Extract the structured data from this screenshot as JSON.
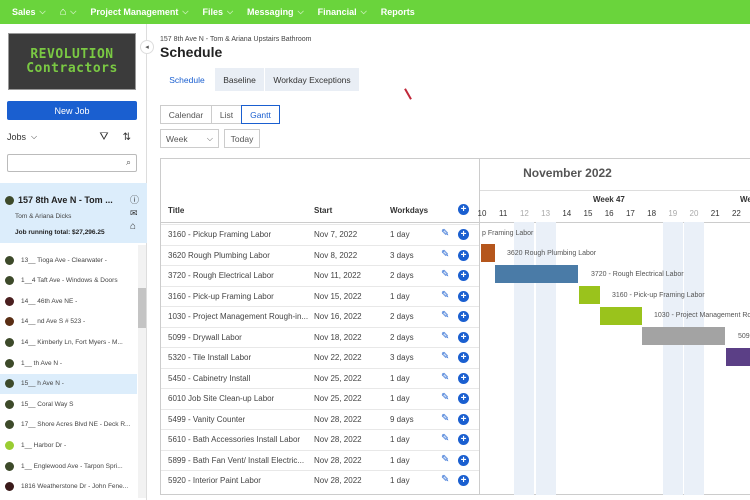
{
  "nav": {
    "items": [
      "Sales",
      "",
      "Project Management",
      "Files",
      "Messaging",
      "Financial",
      "Reports"
    ],
    "icons": [
      "chevron-down-icon",
      "home-icon"
    ]
  },
  "sidebar": {
    "logo_line1": "REVOLUTION",
    "logo_line2": "Contractors",
    "new_job": "New Job",
    "jobs_label": "Jobs",
    "selected": {
      "title": "157 8th Ave N - Tom ...",
      "client": "Tom & Ariana Dicks",
      "total": "Job running total: $27,296.25"
    },
    "jobs": [
      {
        "label": "13__ Tioga Ave - Clearwater -",
        "color": "#3d4a2a"
      },
      {
        "label": "1__4 Taft Ave - Windows & Doors",
        "color": "#3d4a2a"
      },
      {
        "label": "14__ 46th Ave NE -",
        "color": "#4a1f1f"
      },
      {
        "label": "14__ nd Ave S # 523 -",
        "color": "#5a2e14"
      },
      {
        "label": "14__ Kimberly Ln, Fort Myers - M...",
        "color": "#3d4a2a"
      },
      {
        "label": "1__ th Ave N -",
        "color": "#3d4a2a"
      },
      {
        "label": "15__ h Ave N -",
        "color": "#3d4a2a"
      },
      {
        "label": "15__ Coral Way S",
        "color": "#3d4a2a"
      },
      {
        "label": "17__ Shore Acres Blvd NE - Deck R...",
        "color": "#3d4a2a"
      },
      {
        "label": "1__ Harbor Dr -",
        "color": "#9acd32"
      },
      {
        "label": "1__ Englewood Ave - Tarpon Spri...",
        "color": "#3d4a2a"
      },
      {
        "label": "1816 Weatherstone Dr - John Fene...",
        "color": "#3a1a1a"
      }
    ]
  },
  "main": {
    "breadcrumb": "157 8th Ave N - Tom & Ariana Upstairs Bathroom",
    "title": "Schedule",
    "tabs": [
      "Schedule",
      "Baseline",
      "Workday Exceptions"
    ],
    "active_tab": "Schedule",
    "views": [
      "Calendar",
      "List",
      "Gantt"
    ],
    "active_view": "Gantt",
    "range": "Week",
    "today": "Today"
  },
  "table": {
    "headers": [
      "Title",
      "Start",
      "Workdays"
    ],
    "rows": [
      [
        "3160 - Pickup Framing Labor",
        "Nov 7, 2022",
        "1 day"
      ],
      [
        "3620 Rough Plumbing Labor",
        "Nov 8, 2022",
        "3 days"
      ],
      [
        "3720 - Rough Electrical Labor",
        "Nov 11, 2022",
        "2 days"
      ],
      [
        "3160 - Pick-up Framing Labor",
        "Nov 15, 2022",
        "1 day"
      ],
      [
        "1030 - Project Management Rough-in...",
        "Nov 16, 2022",
        "2 days"
      ],
      [
        "5099 - Drywall Labor",
        "Nov 18, 2022",
        "2 days"
      ],
      [
        "5320 - Tile Install Labor",
        "Nov 22, 2022",
        "3 days"
      ],
      [
        "5450 - Cabinetry Install",
        "Nov 25, 2022",
        "1 day"
      ],
      [
        "6010 Job Site Clean-up Labor",
        "Nov 25, 2022",
        "1 day"
      ],
      [
        "5499 - Vanity Counter",
        "Nov 28, 2022",
        "9 days"
      ],
      [
        "5610 - Bath Accessories Install Labor",
        "Nov 28, 2022",
        "1 day"
      ],
      [
        "5899 - Bath Fan Vent/ Install Electric...",
        "Nov 28, 2022",
        "1 day"
      ],
      [
        "5920 - Interior Paint Labor",
        "Nov 28, 2022",
        "1 day"
      ]
    ]
  },
  "gantt": {
    "month": "November 2022",
    "week": "Week 47",
    "next_week": "We",
    "days": [
      "10",
      "11",
      "12",
      "13",
      "14",
      "15",
      "16",
      "17",
      "18",
      "19",
      "20",
      "21",
      "22"
    ],
    "weekend_days": [
      "12",
      "13",
      "19",
      "20"
    ],
    "bar_labels": [
      "p Framing Labor",
      "3620 Rough Plumbing Labor",
      "3720 - Rough Electrical Labor",
      "3160 - Pick-up Framing Labor",
      "1030 - Project Management Rough-in",
      "509"
    ],
    "colors": {
      "plumbing": "#b5561c",
      "electrical": "#4a7ba7",
      "framing": "#9ac31c",
      "pm": "#9ac31c",
      "drywall": "#a3a3a3",
      "tile": "#5b3f86"
    }
  }
}
